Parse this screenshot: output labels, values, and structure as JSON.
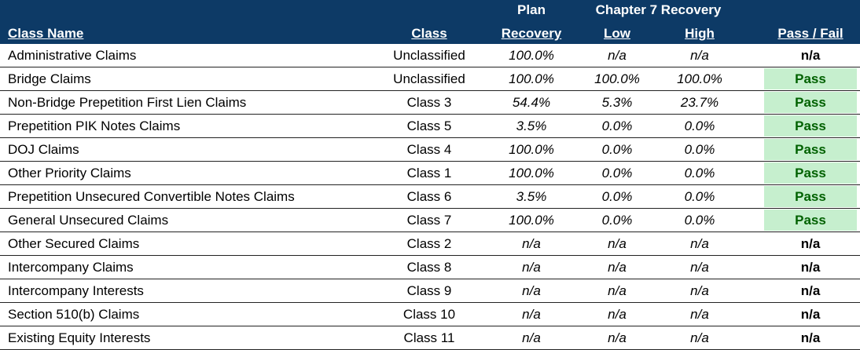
{
  "header": {
    "class_name": "Class Name",
    "class": "Class",
    "plan_top": "Plan",
    "plan_bottom": "Recovery",
    "ch7_top": "Chapter 7 Recovery",
    "low": "Low",
    "high": "High",
    "pass_fail": "Pass / Fail"
  },
  "colors": {
    "header_bg": "#0d3a66",
    "pass_bg": "#c6efce",
    "pass_text": "#006100"
  },
  "rows": [
    {
      "name": "Administrative Claims",
      "class": "Unclassified",
      "plan": "100.0%",
      "low": "n/a",
      "high": "n/a",
      "pf": "n/a"
    },
    {
      "name": "Bridge Claims",
      "class": "Unclassified",
      "plan": "100.0%",
      "low": "100.0%",
      "high": "100.0%",
      "pf": "Pass"
    },
    {
      "name": "Non-Bridge Prepetition First Lien Claims",
      "class": "Class 3",
      "plan": "54.4%",
      "low": "5.3%",
      "high": "23.7%",
      "pf": "Pass"
    },
    {
      "name": "Prepetition PIK Notes Claims",
      "class": "Class 5",
      "plan": "3.5%",
      "low": "0.0%",
      "high": "0.0%",
      "pf": "Pass"
    },
    {
      "name": "DOJ Claims",
      "class": "Class 4",
      "plan": "100.0%",
      "low": "0.0%",
      "high": "0.0%",
      "pf": "Pass"
    },
    {
      "name": "Other Priority Claims",
      "class": "Class 1",
      "plan": "100.0%",
      "low": "0.0%",
      "high": "0.0%",
      "pf": "Pass"
    },
    {
      "name": "Prepetition Unsecured Convertible Notes Claims",
      "class": "Class 6",
      "plan": "3.5%",
      "low": "0.0%",
      "high": "0.0%",
      "pf": "Pass"
    },
    {
      "name": "General Unsecured Claims",
      "class": "Class 7",
      "plan": "100.0%",
      "low": "0.0%",
      "high": "0.0%",
      "pf": "Pass"
    },
    {
      "name": "Other Secured Claims",
      "class": "Class 2",
      "plan": "n/a",
      "low": "n/a",
      "high": "n/a",
      "pf": "n/a"
    },
    {
      "name": "Intercompany Claims",
      "class": "Class 8",
      "plan": "n/a",
      "low": "n/a",
      "high": "n/a",
      "pf": "n/a"
    },
    {
      "name": "Intercompany Interests",
      "class": "Class 9",
      "plan": "n/a",
      "low": "n/a",
      "high": "n/a",
      "pf": "n/a"
    },
    {
      "name": "Section 510(b) Claims",
      "class": "Class 10",
      "plan": "n/a",
      "low": "n/a",
      "high": "n/a",
      "pf": "n/a"
    },
    {
      "name": "Existing Equity Interests",
      "class": "Class 11",
      "plan": "n/a",
      "low": "n/a",
      "high": "n/a",
      "pf": "n/a"
    }
  ]
}
